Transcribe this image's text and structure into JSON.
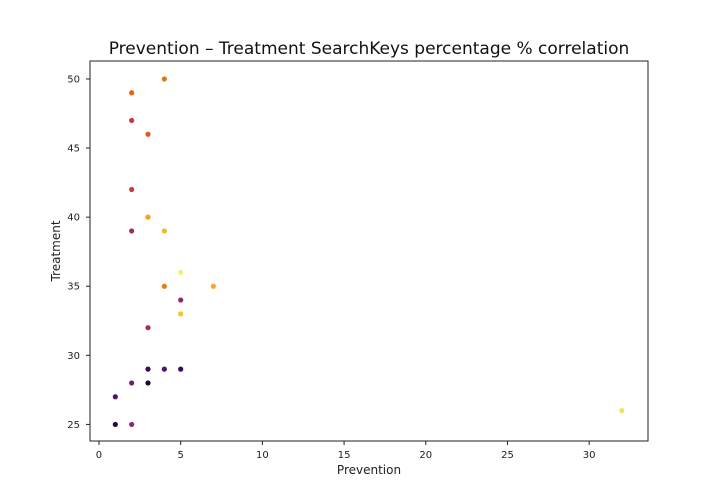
{
  "chart_data": {
    "type": "scatter",
    "title": "Prevention – Treatment SearchKeys percentage % correlation",
    "xlabel": "Prevention",
    "ylabel": "Treatment",
    "xlim": [
      -0.55,
      33.6
    ],
    "ylim": [
      23.8,
      51.3
    ],
    "xticks": [
      0,
      5,
      10,
      15,
      20,
      25,
      30
    ],
    "yticks": [
      25,
      30,
      35,
      40,
      45,
      50
    ],
    "grid": false,
    "colormap": "inferno",
    "points": [
      {
        "x": 4,
        "y": 50,
        "color": "#e8740f"
      },
      {
        "x": 2,
        "y": 49,
        "color": "#e2660e"
      },
      {
        "x": 2,
        "y": 47,
        "color": "#c33745"
      },
      {
        "x": 3,
        "y": 46,
        "color": "#e25a22"
      },
      {
        "x": 2,
        "y": 42,
        "color": "#cc3b3f"
      },
      {
        "x": 3,
        "y": 40,
        "color": "#f7a11a"
      },
      {
        "x": 4,
        "y": 39,
        "color": "#f6b72c"
      },
      {
        "x": 2,
        "y": 39,
        "color": "#a32d5a"
      },
      {
        "x": 5,
        "y": 36,
        "color": "#f3ef76"
      },
      {
        "x": 4,
        "y": 35,
        "color": "#ee7b12"
      },
      {
        "x": 7,
        "y": 35,
        "color": "#f6a825"
      },
      {
        "x": 5,
        "y": 34,
        "color": "#8e2a68"
      },
      {
        "x": 5,
        "y": 33,
        "color": "#fbc236"
      },
      {
        "x": 3,
        "y": 32,
        "color": "#a52c5b"
      },
      {
        "x": 3,
        "y": 29,
        "color": "#3a0a5e"
      },
      {
        "x": 4,
        "y": 29,
        "color": "#52126c"
      },
      {
        "x": 5,
        "y": 29,
        "color": "#3b0b5a"
      },
      {
        "x": 2,
        "y": 28,
        "color": "#771f6b"
      },
      {
        "x": 3,
        "y": 28,
        "color": "#1b0930"
      },
      {
        "x": 1,
        "y": 27,
        "color": "#541368"
      },
      {
        "x": 1,
        "y": 25,
        "color": "#24093f"
      },
      {
        "x": 2,
        "y": 25,
        "color": "#8c2a68"
      },
      {
        "x": 32,
        "y": 26,
        "color": "#f4df62"
      }
    ]
  }
}
